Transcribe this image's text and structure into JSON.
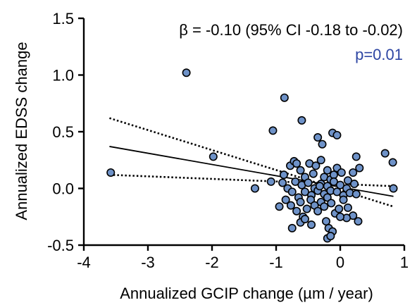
{
  "chart_data": {
    "type": "scatter",
    "title": "",
    "xlabel": "Annualized GCIP change (µm / year)",
    "ylabel": "Annualized EDSS change",
    "xlim": [
      -4,
      1
    ],
    "ylim": [
      -0.5,
      1.5
    ],
    "xticks": [
      -4,
      -3,
      -2,
      -1,
      0,
      1
    ],
    "yticks": [
      -0.5,
      0.0,
      0.5,
      1.0,
      1.5
    ],
    "xtick_labels": [
      "-4",
      "-3",
      "-2",
      "-1",
      "0",
      "1"
    ],
    "ytick_labels": [
      "-0.5",
      "0.0",
      "0.5",
      "1.0",
      "1.5"
    ],
    "grid": false,
    "annotations": {
      "beta": "β = -0.10 (95% CI -0.18 to -0.02)",
      "p": "p=0.01"
    },
    "colors": {
      "points": "#6e92c8",
      "p_text": "#2e46a3",
      "lines": "#000000"
    },
    "regression": {
      "x": [
        -3.6,
        0.83
      ],
      "y": [
        0.37,
        -0.07
      ]
    },
    "ci_upper": {
      "x": [
        -3.6,
        0.83
      ],
      "y": [
        0.62,
        -0.16
      ]
    },
    "ci_lower": {
      "x": [
        -3.6,
        0.83
      ],
      "y": [
        0.12,
        0.02
      ]
    },
    "series": [
      {
        "points": [
          [
            -3.58,
            0.14
          ],
          [
            -2.4,
            1.02
          ],
          [
            -1.98,
            0.28
          ],
          [
            -1.33,
            0.0
          ],
          [
            -1.05,
            0.51
          ],
          [
            -1.08,
            0.06
          ],
          [
            -0.87,
            0.8
          ],
          [
            -0.6,
            0.6
          ],
          [
            -0.35,
            0.45
          ],
          [
            -0.28,
            0.39
          ],
          [
            -0.12,
            0.49
          ],
          [
            -0.05,
            0.47
          ],
          [
            0.25,
            0.28
          ],
          [
            0.7,
            0.31
          ],
          [
            0.82,
            0.23
          ],
          [
            0.83,
            0.0
          ],
          [
            -0.78,
            0.2
          ],
          [
            -0.72,
            0.24
          ],
          [
            -0.68,
            0.22
          ],
          [
            -0.62,
            0.16
          ],
          [
            -0.55,
            0.1
          ],
          [
            -0.48,
            0.22
          ],
          [
            -0.42,
            0.13
          ],
          [
            -0.38,
            0.2
          ],
          [
            -0.3,
            0.25
          ],
          [
            -0.25,
            0.1
          ],
          [
            -0.2,
            0.16
          ],
          [
            -0.15,
            0.08
          ],
          [
            -0.1,
            0.12
          ],
          [
            -0.05,
            0.18
          ],
          [
            0.02,
            0.14
          ],
          [
            0.12,
            0.07
          ],
          [
            0.2,
            0.14
          ],
          [
            0.3,
            0.18
          ],
          [
            -0.9,
            0.05
          ],
          [
            -0.82,
            0.0
          ],
          [
            -0.75,
            -0.03
          ],
          [
            -0.7,
            0.06
          ],
          [
            -0.65,
            -0.08
          ],
          [
            -0.6,
            0.03
          ],
          [
            -0.55,
            -0.03
          ],
          [
            -0.5,
            0.05
          ],
          [
            -0.45,
            -0.06
          ],
          [
            -0.4,
            0.0
          ],
          [
            -0.35,
            -0.02
          ],
          [
            -0.3,
            0.04
          ],
          [
            -0.25,
            -0.05
          ],
          [
            -0.2,
            0.02
          ],
          [
            -0.15,
            -0.02
          ],
          [
            -0.1,
            0.06
          ],
          [
            -0.05,
            -0.03
          ],
          [
            0.0,
            0.03
          ],
          [
            0.05,
            -0.06
          ],
          [
            0.1,
            0.0
          ],
          [
            0.15,
            -0.04
          ],
          [
            0.22,
            0.04
          ],
          [
            -0.85,
            -0.1
          ],
          [
            -0.77,
            -0.15
          ],
          [
            -0.68,
            -0.2
          ],
          [
            -0.62,
            -0.12
          ],
          [
            -0.58,
            -0.25
          ],
          [
            -0.52,
            -0.18
          ],
          [
            -0.46,
            -0.1
          ],
          [
            -0.4,
            -0.15
          ],
          [
            -0.35,
            -0.2
          ],
          [
            -0.3,
            -0.12
          ],
          [
            -0.25,
            -0.16
          ],
          [
            -0.2,
            -0.08
          ],
          [
            -0.14,
            -0.13
          ],
          [
            -0.08,
            -0.22
          ],
          [
            -0.02,
            -0.18
          ],
          [
            0.05,
            -0.1
          ],
          [
            0.12,
            -0.17
          ],
          [
            0.2,
            -0.24
          ],
          [
            0.28,
            -0.29
          ],
          [
            -0.75,
            -0.35
          ],
          [
            -0.62,
            -0.3
          ],
          [
            -0.45,
            -0.32
          ],
          [
            -0.22,
            -0.29
          ],
          [
            -0.18,
            -0.35
          ],
          [
            -0.12,
            -0.38
          ],
          [
            -0.2,
            -0.44
          ],
          [
            -0.15,
            -0.42
          ],
          [
            -0.55,
            -0.27
          ],
          [
            0.1,
            -0.26
          ],
          [
            -0.95,
            -0.16
          ],
          [
            -0.88,
            0.12
          ],
          [
            -0.32,
            0.02
          ],
          [
            0.0,
            -0.25
          ],
          [
            0.25,
            -0.05
          ]
        ]
      }
    ]
  }
}
